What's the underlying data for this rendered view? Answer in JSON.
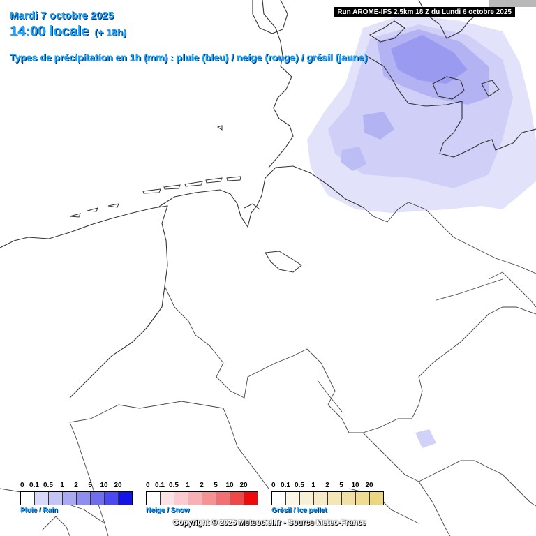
{
  "header": {
    "date": "Mardi 7 octobre 2025",
    "time": "14:00 locale",
    "offset": "(+ 18h)",
    "description": "Types de précipitation en 1h (mm) : pluie (bleu) / neige (rouge) / grésil (jaune)"
  },
  "run_info": "Run AROME-IFS 2.5km 18 Z du Lundi 6 octobre 2025",
  "legends": [
    {
      "id": "rain",
      "title": "Pluie / Rain",
      "ticks": [
        "0",
        "0.1",
        "0.5",
        "1",
        "2",
        "5",
        "10",
        "20"
      ],
      "colors": [
        "#ffffff",
        "#d8d8fb",
        "#c4c4f7",
        "#aaaaf3",
        "#8e8ef0",
        "#6f6fee",
        "#4a4af0",
        "#1414e6"
      ]
    },
    {
      "id": "snow",
      "title": "Neige / Snow",
      "ticks": [
        "0",
        "0.1",
        "0.5",
        "1",
        "2",
        "5",
        "10",
        "20"
      ],
      "colors": [
        "#ffffff",
        "#fbe2e6",
        "#fbcbd0",
        "#f8b0b4",
        "#f69194",
        "#f27072",
        "#f04848",
        "#f00a0a"
      ]
    },
    {
      "id": "sleet",
      "title": "Grésil / Ice pellet",
      "ticks": [
        "0",
        "0.1",
        "0.5",
        "1",
        "2",
        "5",
        "10",
        "20"
      ],
      "colors": [
        "#ffffff",
        "#fbf6e6",
        "#f8f0d6",
        "#f6ebc6",
        "#f4e6b6",
        "#f1e0a4",
        "#efdb92",
        "#ecd67e"
      ]
    }
  ],
  "copyright": "Copyright © 2025 Meteociel.fr - Source Meteo-France",
  "colors": {
    "precip_light": "#dcdcfa",
    "precip_medium": "#b6b6f4",
    "precip_heavy": "#8c8cee",
    "border": "#333333",
    "header_text": "#1aa6ff"
  },
  "icons": [
    "precipitation-area",
    "coastline",
    "country-borders"
  ]
}
